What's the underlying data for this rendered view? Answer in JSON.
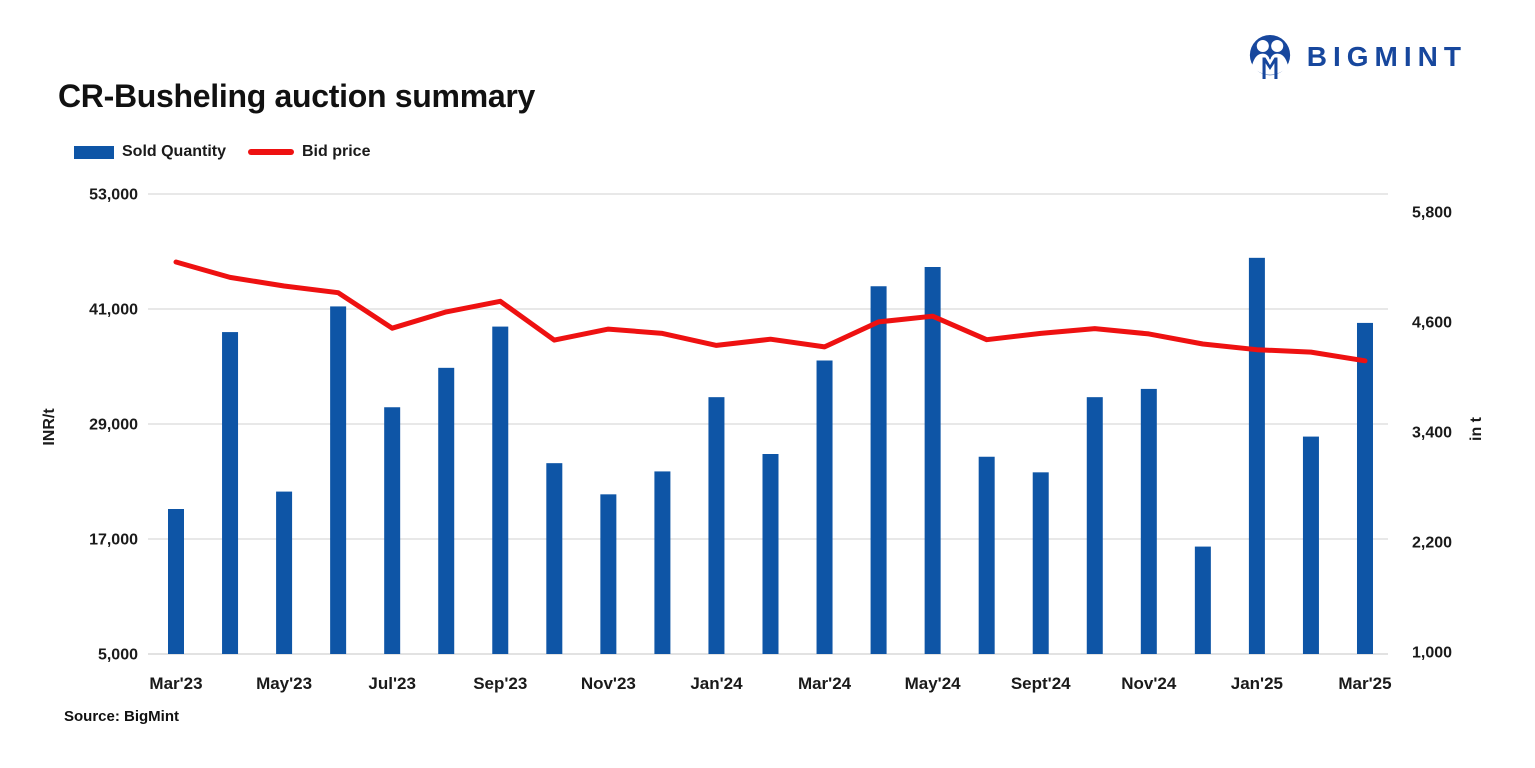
{
  "title": "CR-Busheling auction summary",
  "source": "Source: BigMint",
  "logo": {
    "text": "BIGMINT",
    "color": "#17479D",
    "icon": "two-people-m-icon"
  },
  "legend": [
    {
      "label": "Sold Quantity",
      "type": "bar",
      "color": "#0E55A6"
    },
    {
      "label": "Bid price",
      "type": "line",
      "color": "#EE1111"
    }
  ],
  "chart_data": {
    "type": "bar",
    "combo": "bar+line",
    "title": "CR-Busheling auction summary",
    "grid": true,
    "legend_position": "top-left",
    "left_axis": {
      "label": "INR/t",
      "series": "Bid price",
      "ticks": [
        "53,000",
        "41,000",
        "29,000",
        "17,000",
        "5,000"
      ],
      "range": [
        5000,
        53000
      ]
    },
    "right_axis": {
      "label": "in t",
      "series": "Sold Quantity",
      "ticks": [
        "5,800",
        "4,600",
        "3,400",
        "2,200",
        "1,000"
      ],
      "range": [
        1000,
        5800
      ]
    },
    "x_tick_labels": [
      "Mar'23",
      "May'23",
      "Jul'23",
      "Sep'23",
      "Nov'23",
      "Jan'24",
      "Mar'24",
      "May'24",
      "Sept'24",
      "Nov'24",
      "Jan'25",
      "Mar'25"
    ],
    "x_tick_bar_indices": [
      0,
      2,
      4,
      6,
      8,
      10,
      12,
      14,
      16,
      18,
      20,
      22
    ],
    "bar_count": 23,
    "series": [
      {
        "name": "Sold Quantity",
        "type": "bar",
        "axis": "right",
        "color": "#0E55A6",
        "values": [
          2560,
          4490,
          2750,
          4770,
          3670,
          4100,
          4550,
          3060,
          2720,
          2970,
          3780,
          3160,
          4180,
          4990,
          5200,
          3130,
          2960,
          3780,
          3870,
          2150,
          5300,
          3350,
          4590
        ]
      },
      {
        "name": "Bid price",
        "type": "line",
        "axis": "left",
        "color": "#EE1111",
        "values": [
          45900,
          44300,
          43400,
          42700,
          39000,
          40700,
          41800,
          37750,
          38900,
          38450,
          37200,
          37850,
          37050,
          39650,
          40250,
          37800,
          38450,
          38950,
          38400,
          37350,
          36750,
          36500,
          35600
        ]
      }
    ],
    "colors": {
      "bar": "#0E55A6",
      "line": "#EE1111",
      "grid": "#D9D9D9",
      "text": "#1a1a1a"
    }
  }
}
